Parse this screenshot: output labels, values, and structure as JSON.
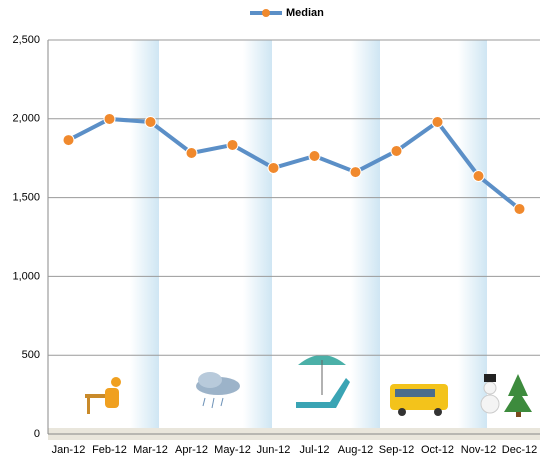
{
  "chart_data": {
    "type": "line",
    "categories": [
      "Jan-12",
      "Feb-12",
      "Mar-12",
      "Apr-12",
      "May-12",
      "Jun-12",
      "Jul-12",
      "Aug-12",
      "Sep-12",
      "Oct-12",
      "Nov-12",
      "Dec-12"
    ],
    "series": [
      {
        "name": "Median",
        "color": "#5b8fc7",
        "marker_color": "#f0892d",
        "values": [
          1865,
          1999,
          1980,
          1783,
          1834,
          1688,
          1764,
          1662,
          1796,
          1980,
          1637,
          1428
        ]
      }
    ],
    "ylim": [
      0,
      2500
    ],
    "yticks": [
      0,
      500,
      {
        "value": 1000,
        "label": "1,000"
      },
      {
        "value": 1500,
        "label": "1,500"
      },
      {
        "value": 2000,
        "label": "2,000"
      },
      {
        "value": 2500,
        "label": "2,500"
      }
    ],
    "grid": true,
    "legend": "top"
  }
}
